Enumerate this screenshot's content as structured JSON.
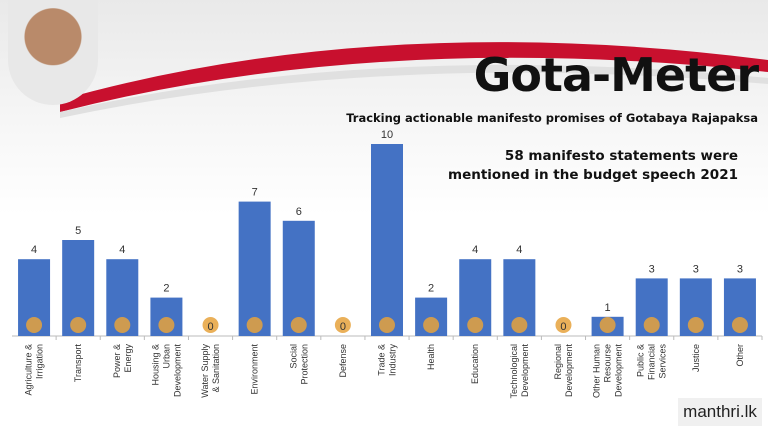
{
  "header": {
    "title": "Gota-Meter",
    "subtitle": "Tracking actionable manifesto promises of Gotabaya Rajapaksa",
    "statement_line1": "58 manifesto statements were",
    "statement_line2": "mentioned in the budget speech 2021"
  },
  "logo": "manthri.lk",
  "colors": {
    "bar": "#4472c4",
    "swoosh": "#c8102e"
  },
  "chart_data": {
    "type": "bar",
    "categories": [
      [
        "Agriculture &",
        "Irrigation"
      ],
      [
        "Transport"
      ],
      [
        "Power &",
        "Energy"
      ],
      [
        "Housing &",
        "Urban",
        "Development"
      ],
      [
        "Water Supply",
        "& Sanitation"
      ],
      [
        "Environment"
      ],
      [
        "Social",
        "Protection"
      ],
      [
        "Defense"
      ],
      [
        "Trade &",
        "Industry"
      ],
      [
        "Health"
      ],
      [
        "Education"
      ],
      [
        "Technological",
        "Development"
      ],
      [
        "Regional",
        "Development"
      ],
      [
        "Other Human",
        "Resourse",
        "Development"
      ],
      [
        "Public &",
        "Financial",
        "Services"
      ],
      [
        "Justice"
      ],
      [
        "Other"
      ]
    ],
    "values": [
      4,
      5,
      4,
      2,
      0,
      7,
      6,
      0,
      10,
      2,
      4,
      4,
      0,
      1,
      3,
      3,
      3
    ],
    "ylim": [
      0,
      10
    ],
    "grid": false,
    "data_labels": true
  }
}
